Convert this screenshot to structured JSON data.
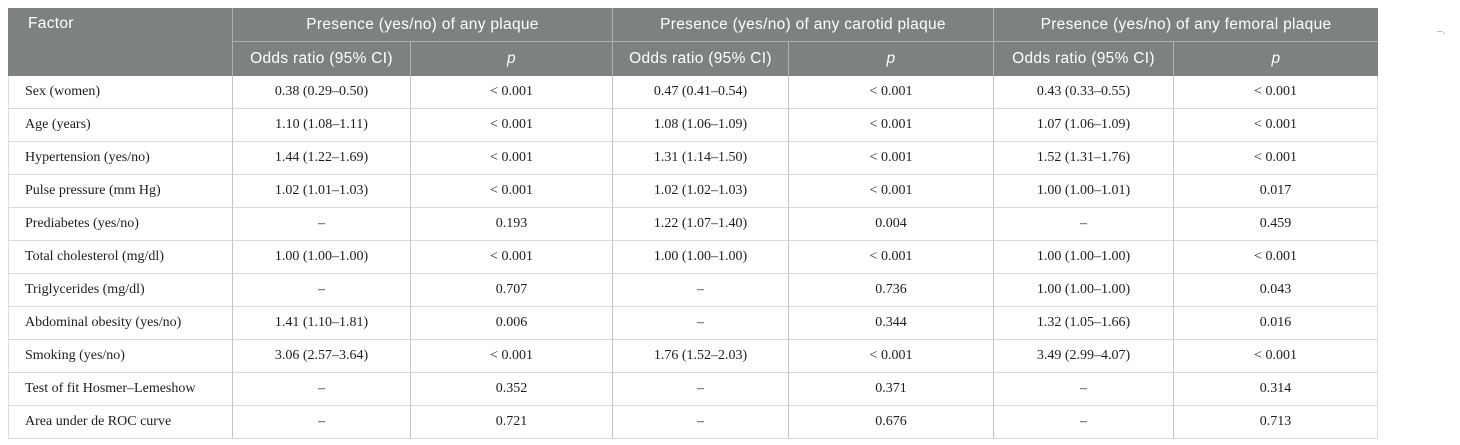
{
  "stray_mark": "–.",
  "table": {
    "factor_header": "Factor",
    "groups": [
      {
        "label": "Presence (yes/no) of any plaque",
        "or_label": "Odds ratio (95% CI)",
        "p_label": "p"
      },
      {
        "label": "Presence (yes/no) of any carotid plaque",
        "or_label": "Odds ratio (95% CI)",
        "p_label": "p"
      },
      {
        "label": "Presence (yes/no) of any femoral plaque",
        "or_label": "Odds ratio (95% CI)",
        "p_label": "p"
      }
    ],
    "rows": [
      {
        "factor": "Sex (women)",
        "cells": [
          "0.38 (0.29–0.50)",
          "< 0.001",
          "0.47 (0.41–0.54)",
          "< 0.001",
          "0.43 (0.33–0.55)",
          "< 0.001"
        ]
      },
      {
        "factor": "Age (years)",
        "cells": [
          "1.10 (1.08–1.11)",
          "< 0.001",
          "1.08 (1.06–1.09)",
          "< 0.001",
          "1.07 (1.06–1.09)",
          "< 0.001"
        ]
      },
      {
        "factor": "Hypertension (yes/no)",
        "cells": [
          "1.44 (1.22–1.69)",
          "< 0.001",
          "1.31 (1.14–1.50)",
          "< 0.001",
          "1.52 (1.31–1.76)",
          "< 0.001"
        ]
      },
      {
        "factor": "Pulse pressure (mm Hg)",
        "cells": [
          "1.02 (1.01–1.03)",
          "< 0.001",
          "1.02 (1.02–1.03)",
          "< 0.001",
          "1.00 (1.00–1.01)",
          "0.017"
        ]
      },
      {
        "factor": "Prediabetes (yes/no)",
        "cells": [
          "–",
          "0.193",
          "1.22 (1.07–1.40)",
          "0.004",
          "–",
          "0.459"
        ]
      },
      {
        "factor": "Total cholesterol (mg/dl)",
        "cells": [
          "1.00 (1.00–1.00)",
          "< 0.001",
          "1.00 (1.00–1.00)",
          "< 0.001",
          "1.00 (1.00–1.00)",
          "< 0.001"
        ]
      },
      {
        "factor": "Triglycerides (mg/dl)",
        "cells": [
          "–",
          "0.707",
          "–",
          "0.736",
          "1.00 (1.00–1.00)",
          "0.043"
        ]
      },
      {
        "factor": "Abdominal obesity (yes/no)",
        "cells": [
          "1.41 (1.10–1.81)",
          "0.006",
          "–",
          "0.344",
          "1.32 (1.05–1.66)",
          "0.016"
        ]
      },
      {
        "factor": "Smoking (yes/no)",
        "cells": [
          "3.06 (2.57–3.64)",
          "< 0.001",
          "1.76 (1.52–2.03)",
          "< 0.001",
          "3.49 (2.99–4.07)",
          "< 0.001"
        ]
      },
      {
        "factor": "Test of fit Hosmer–Lemeshow",
        "cells": [
          "–",
          "0.352",
          "–",
          "0.371",
          "–",
          "0.314"
        ]
      },
      {
        "factor": "Area under de ROC curve",
        "cells": [
          "–",
          "0.721",
          "–",
          "0.676",
          "–",
          "0.713"
        ]
      }
    ],
    "colors": {
      "header_bg": "#7d8182",
      "header_text": "#ffffff",
      "body_text": "#1d1d1d",
      "grid_line": "#c3c6c6",
      "row_line": "#d9dadb"
    }
  }
}
